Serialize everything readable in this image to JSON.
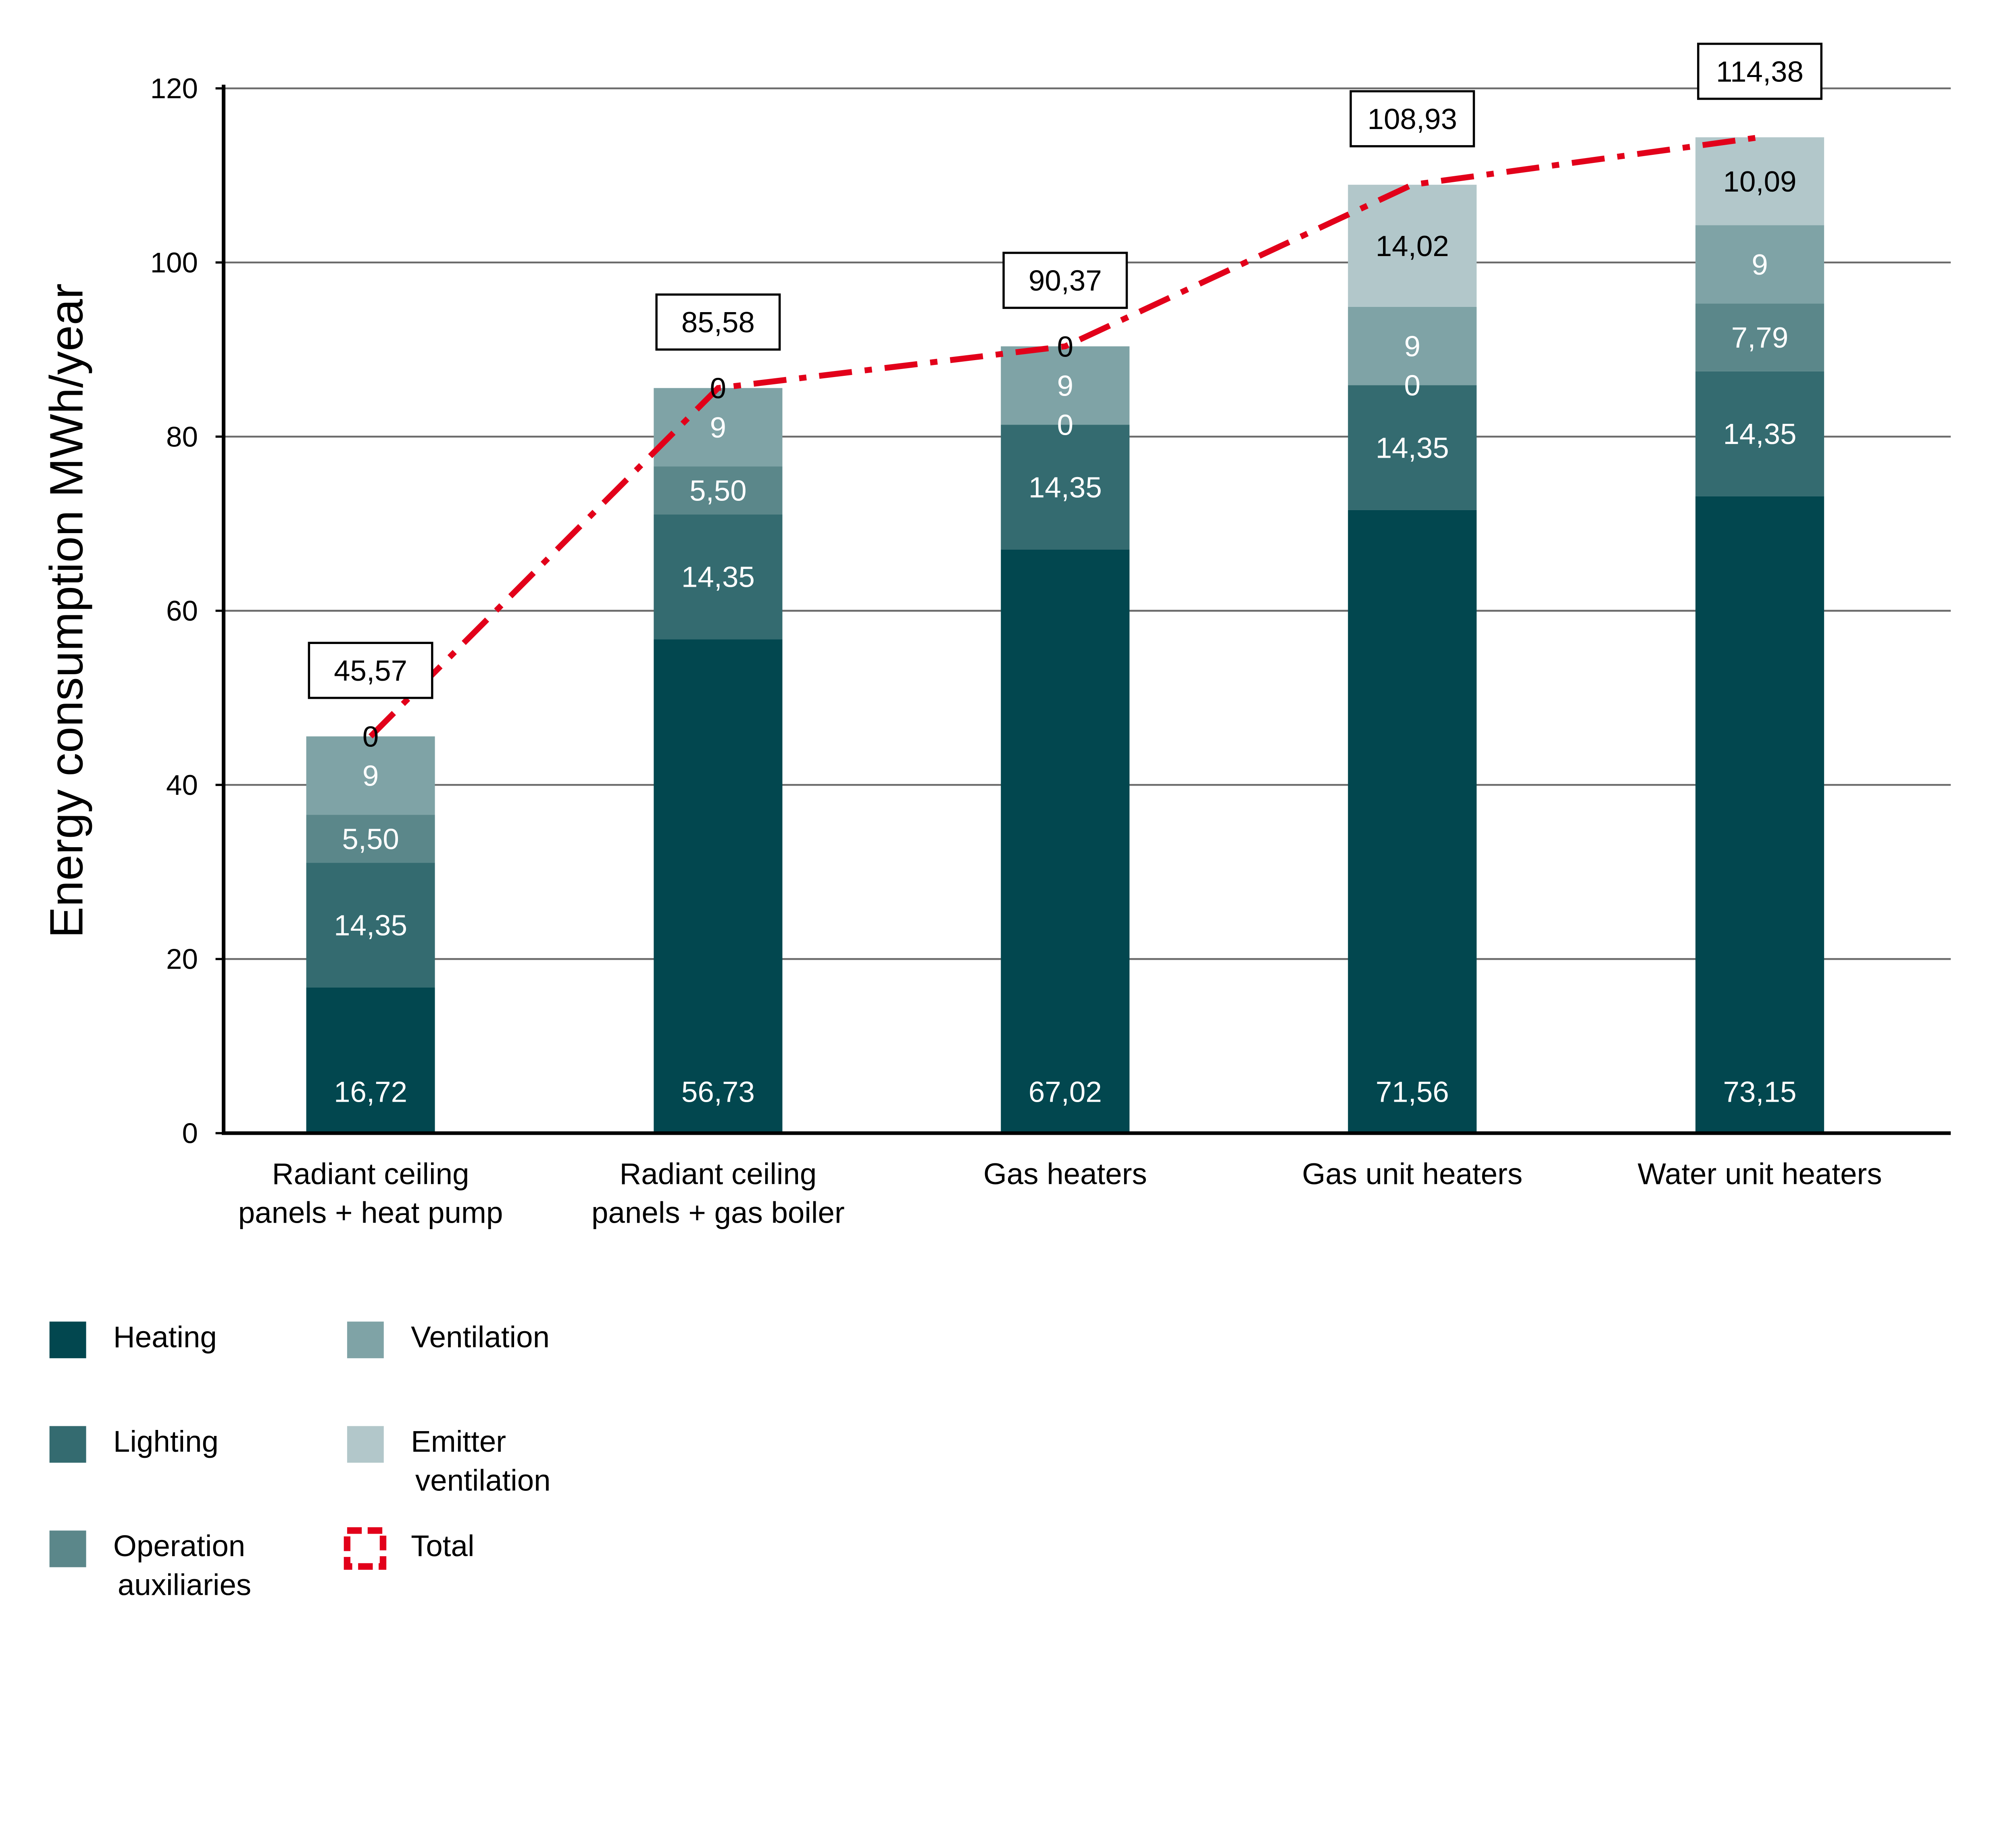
{
  "chart_data": {
    "type": "bar",
    "stacked": true,
    "ylabel": "Energy consumption MWh/year",
    "xlabel": "",
    "ylim": [
      0,
      120
    ],
    "yticks": [
      0,
      20,
      40,
      60,
      80,
      100,
      120
    ],
    "grid": true,
    "legend_placement": "bottom-left",
    "categories": [
      [
        "Radiant ceiling",
        "panels + heat pump"
      ],
      [
        "Radiant ceiling",
        "panels + gas boiler"
      ],
      [
        "Gas heaters"
      ],
      [
        "Gas unit heaters"
      ],
      [
        "Water unit heaters"
      ]
    ],
    "series": [
      {
        "name": [
          "Heating"
        ],
        "color": "#02474f",
        "label_color": "#ffffff",
        "values": [
          16.72,
          56.73,
          67.02,
          71.56,
          73.15
        ]
      },
      {
        "name": [
          "Lighting"
        ],
        "color": "#346b70",
        "label_color": "#ffffff",
        "values": [
          14.35,
          14.35,
          14.35,
          14.35,
          14.35
        ]
      },
      {
        "name": [
          "Operation",
          "auxiliaries"
        ],
        "color": "#5b878a",
        "label_color": "#ffffff",
        "values": [
          5.5,
          5.5,
          0.0,
          0.0,
          7.79
        ]
      },
      {
        "name": [
          "Ventilation"
        ],
        "color": "#7fa3a6",
        "label_color": "#ffffff",
        "values": [
          9.0,
          9.0,
          9.0,
          9.0,
          9.0
        ]
      },
      {
        "name": [
          "Emitter",
          "ventilation"
        ],
        "color": "#b2c7ca",
        "label_color": "#000000",
        "values": [
          0.0,
          0.0,
          0.0,
          14.02,
          10.09
        ]
      }
    ],
    "total": {
      "name": "Total",
      "color": "#e2001a",
      "values": [
        45.57,
        85.58,
        90.37,
        108.93,
        114.38
      ]
    }
  }
}
